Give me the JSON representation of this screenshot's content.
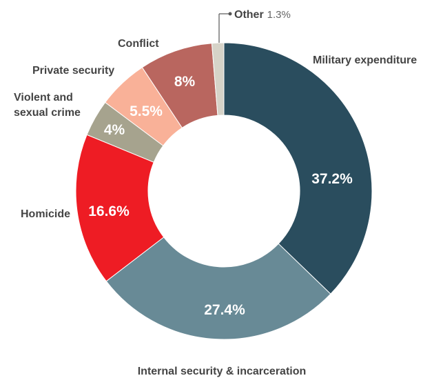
{
  "chart_data": {
    "type": "pie",
    "donut": true,
    "categories": [
      "Military expenditure",
      "Internal security & incarceration",
      "Homicide",
      "Violent and sexual crime",
      "Private security",
      "Conflict",
      "Other"
    ],
    "values": [
      37.2,
      27.4,
      16.6,
      4,
      5.5,
      8,
      1.3
    ],
    "value_labels": [
      "37.2%",
      "27.4%",
      "16.6%",
      "4%",
      "5.5%",
      "8%",
      "1.3%"
    ],
    "colors": [
      "#2a4d5e",
      "#688a96",
      "#ee1c24",
      "#a6a38e",
      "#f9b198",
      "#b9665f",
      "#d6d3c8"
    ],
    "value_label_colors": [
      "#ffffff",
      "#ffffff",
      "#ffffff",
      "#ffffff",
      "#ffffff",
      "#ffffff",
      "#666666"
    ]
  }
}
